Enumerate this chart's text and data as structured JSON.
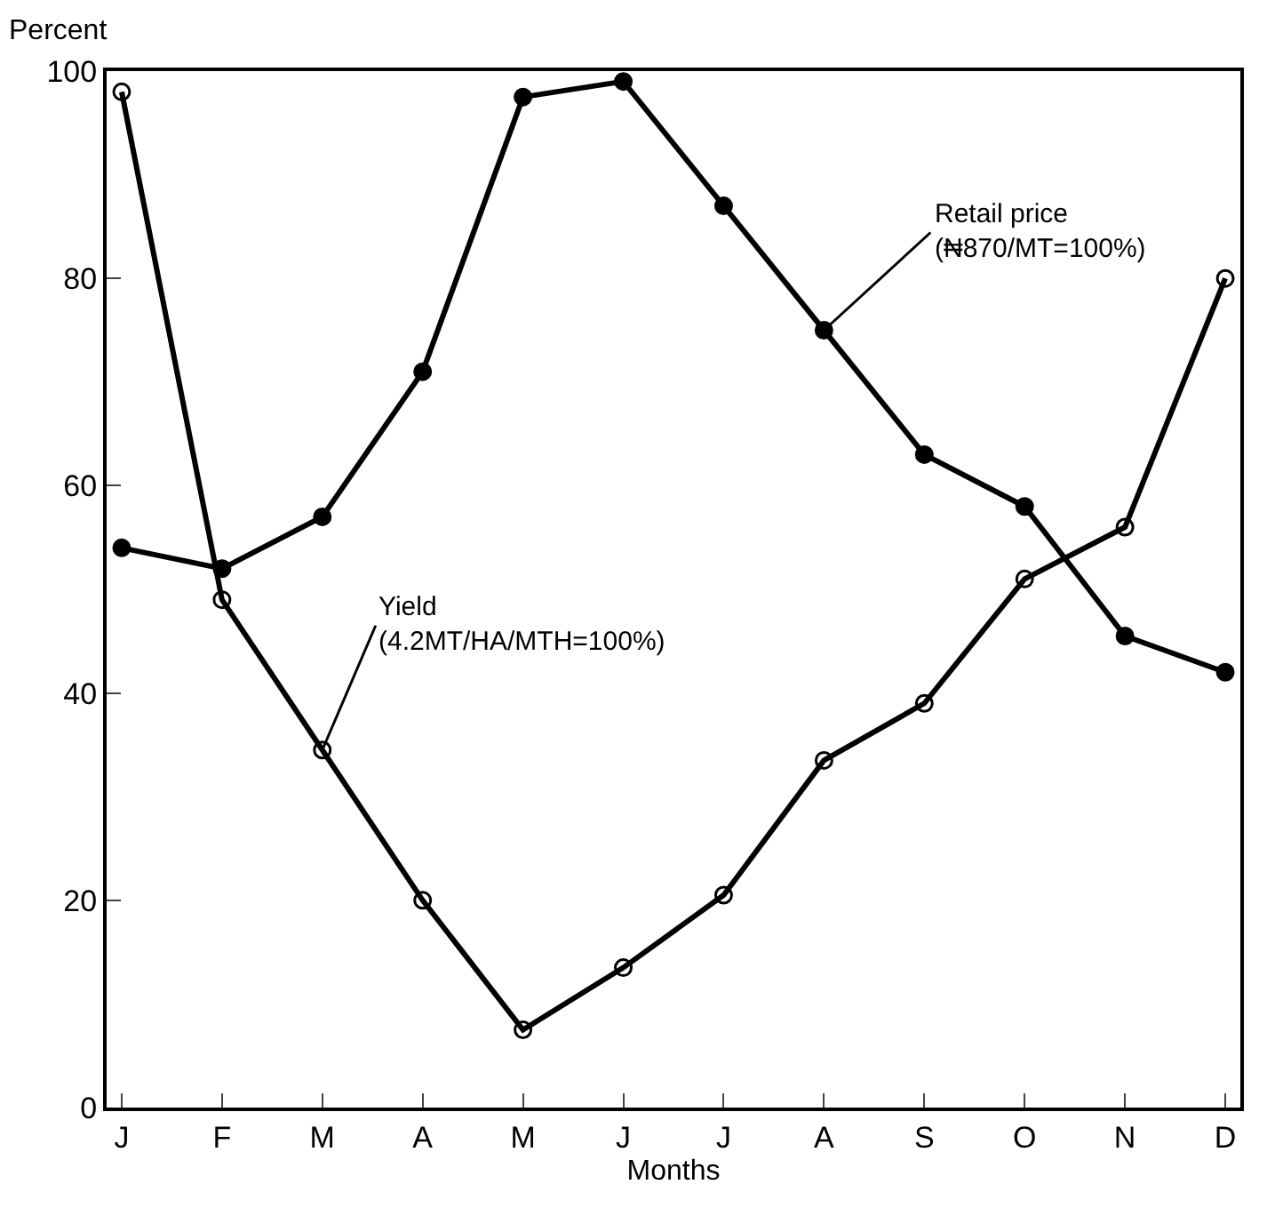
{
  "chart_data": {
    "type": "line",
    "xlabel": "Months",
    "ylabel": "Percent",
    "categories": [
      "J",
      "F",
      "M",
      "A",
      "M",
      "J",
      "J",
      "A",
      "S",
      "O",
      "N",
      "D"
    ],
    "series": [
      {
        "name": "Retail price\n(₦870/MT=100%)",
        "color": "#000000",
        "marker": "circle",
        "values": [
          54,
          52,
          57,
          71,
          97.5,
          99,
          87,
          75,
          63,
          58,
          45.5,
          42
        ]
      },
      {
        "name": "Yield\n(4.2MT/HA/MTH=100%)",
        "color": "#000000",
        "marker": "circle-open",
        "values": [
          98,
          49,
          34.5,
          20,
          7.5,
          13.5,
          20.5,
          33.5,
          39,
          51,
          56,
          80
        ]
      }
    ],
    "ylim": [
      0,
      100
    ],
    "yticks": [
      0,
      20,
      40,
      60,
      80,
      100
    ],
    "legend": false
  }
}
